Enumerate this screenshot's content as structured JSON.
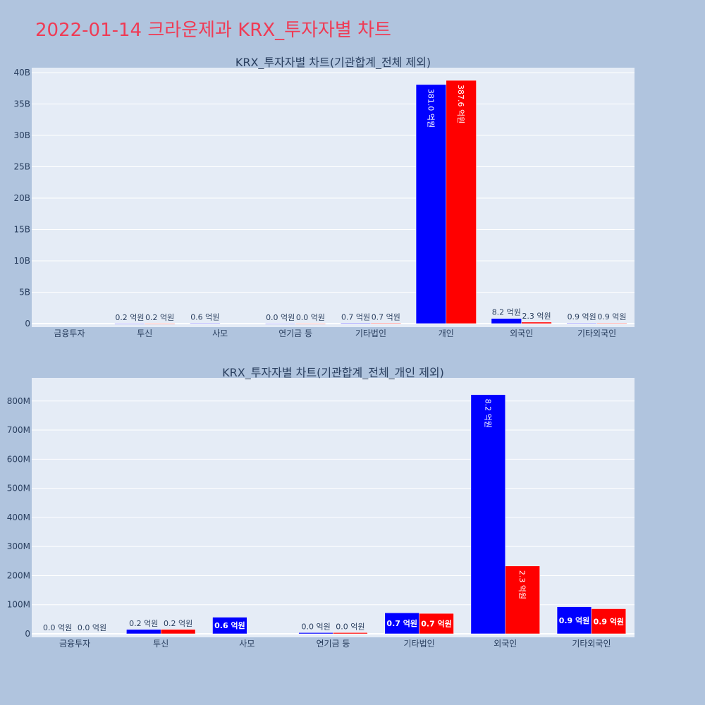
{
  "page_title": "2022-01-14 크라운제과 KRX_투자자별 차트",
  "colors": {
    "background": "#b0c4de",
    "plot_bg": "#e5ecf6",
    "series_a": "#0000ff",
    "series_b": "#ff0000",
    "title": "#ef3b55",
    "text": "#2a3f5f"
  },
  "chart_data": [
    {
      "type": "bar",
      "title": "KRX_투자자별 차트(기관합계_전체 제외)",
      "categories": [
        "금융투자",
        "투신",
        "사모",
        "연기금 등",
        "기타법인",
        "개인",
        "외국인",
        "기타외국인"
      ],
      "ylim": [
        0,
        40000000000
      ],
      "y_ticks": [
        0,
        5000000000,
        10000000000,
        15000000000,
        20000000000,
        25000000000,
        30000000000,
        35000000000,
        40000000000
      ],
      "y_tick_labels": [
        "0",
        "5B",
        "10B",
        "15B",
        "20B",
        "25B",
        "30B",
        "35B",
        "40B"
      ],
      "series": [
        {
          "color": "#0000ff",
          "values": [
            0,
            15000000,
            57000000,
            4000000,
            72000000,
            38100000000,
            822000000,
            93000000
          ],
          "labels": [
            "",
            "0.2 억원",
            "0.6 억원",
            "0.0 억원",
            "0.7 억원",
            "381.0 억원",
            "8.2 억원",
            "0.9 억원"
          ]
        },
        {
          "color": "#ff0000",
          "values": [
            0,
            15000000,
            0,
            4000000,
            70000000,
            38760000000,
            233000000,
            86000000
          ],
          "labels": [
            "",
            "0.2 억원",
            "",
            "0.0 억원",
            "0.7 억원",
            "387.6 억원",
            "2.3 억원",
            "0.9 억원"
          ]
        }
      ],
      "grid": true
    },
    {
      "type": "bar",
      "title": "KRX_투자자별 차트(기관합계_전체_개인 제외)",
      "categories": [
        "금융투자",
        "투신",
        "사모",
        "연기금 등",
        "기타법인",
        "외국인",
        "기타외국인"
      ],
      "ylim": [
        0,
        860000000
      ],
      "y_ticks": [
        0,
        100000000,
        200000000,
        300000000,
        400000000,
        500000000,
        600000000,
        700000000,
        800000000
      ],
      "y_tick_labels": [
        "0",
        "100M",
        "200M",
        "300M",
        "400M",
        "500M",
        "600M",
        "700M",
        "800M"
      ],
      "series": [
        {
          "color": "#0000ff",
          "values": [
            0,
            15000000,
            57000000,
            4000000,
            72000000,
            822000000,
            93000000
          ],
          "labels": [
            "0.0 억원",
            "0.2 억원",
            "0.6 억원",
            "0.0 억원",
            "0.7 억원",
            "8.2 억원",
            "0.9 억원"
          ]
        },
        {
          "color": "#ff0000",
          "values": [
            0,
            15000000,
            0,
            4000000,
            70000000,
            233000000,
            86000000
          ],
          "labels": [
            "0.0 억원",
            "0.2 억원",
            "",
            "0.0 억원",
            "0.7 억원",
            "2.3 억원",
            "0.9 억원"
          ]
        }
      ],
      "grid": true
    }
  ]
}
